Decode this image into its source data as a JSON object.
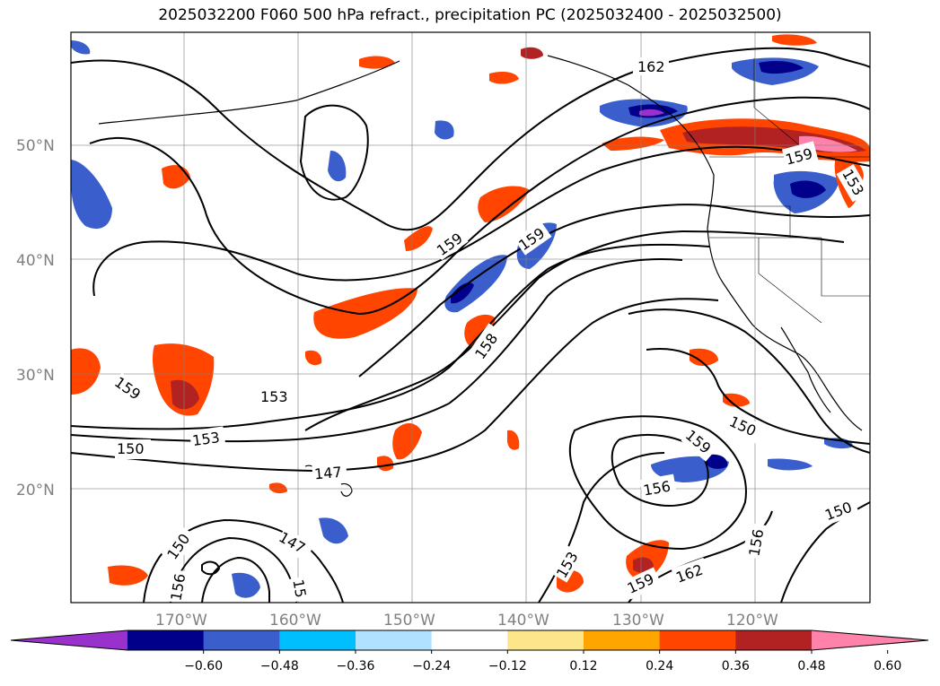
{
  "title": "2025032200 F060 500 hPa refract., precipitation PC (2025032400 - 2025032500)",
  "map": {
    "projection": "plate-carree",
    "lon_range": [
      -180,
      -110
    ],
    "lat_range": [
      10,
      60
    ],
    "lat_labels": [
      "50°N",
      "40°N",
      "30°N",
      "20°N"
    ],
    "lon_labels": [
      "170°W",
      "160°W",
      "150°W",
      "140°W",
      "130°W",
      "120°W"
    ],
    "grid": true,
    "contour_color": "#000000",
    "contour_labels": [
      "162",
      "159",
      "159",
      "159",
      "159",
      "158",
      "156",
      "153",
      "153",
      "153",
      "150",
      "150",
      "150",
      "150",
      "147",
      "147",
      "159",
      "162",
      "156",
      "156",
      "159",
      "153",
      "15"
    ]
  },
  "colorbar": {
    "ticks": [
      "−0.60",
      "−0.48",
      "−0.36",
      "−0.24",
      "−0.12",
      "0.12",
      "0.24",
      "0.36",
      "0.48",
      "0.60"
    ],
    "colors": [
      "#9932cc",
      "#00008b",
      "#3a5fcd",
      "#00bfff",
      "#b0e2ff",
      "#ffffff",
      "#fde68a",
      "#ffa500",
      "#ff4500",
      "#b22222",
      "#ff82ab"
    ],
    "extend": "both"
  }
}
